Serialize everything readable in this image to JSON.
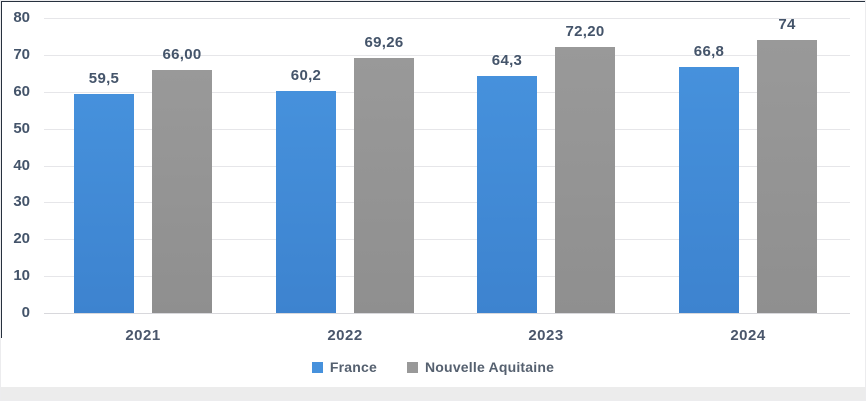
{
  "frame": {
    "page_background": "#ececec",
    "card_background": "#ffffff",
    "top_border_color": "#27313e",
    "left_border_color": "#27313e",
    "text_color": "#44546a"
  },
  "chart_data": {
    "type": "bar",
    "title": "",
    "xlabel": "",
    "ylabel": "",
    "categories": [
      "2021",
      "2022",
      "2023",
      "2024"
    ],
    "series": [
      {
        "name": "France",
        "color": "#4691DC",
        "color_dark": "#3d83cf",
        "values": [
          59.5,
          60.2,
          64.3,
          66.8
        ],
        "labels": [
          "59,5",
          "60,2",
          "64,3",
          "66,8"
        ]
      },
      {
        "name": "Nouvelle Aquitaine",
        "color": "#999999",
        "color_dark": "#8f8f8f",
        "values": [
          66.0,
          69.26,
          72.2,
          74
        ],
        "labels": [
          "66,00",
          "69,26",
          "72,20",
          "74"
        ]
      }
    ],
    "ylim": [
      0,
      80
    ],
    "yticks": [
      0,
      10,
      20,
      30,
      40,
      50,
      60,
      70,
      80
    ],
    "grid": true,
    "gridline_color": "#e6e6e9",
    "label_color": "#44546a",
    "legend_position": "bottom"
  }
}
